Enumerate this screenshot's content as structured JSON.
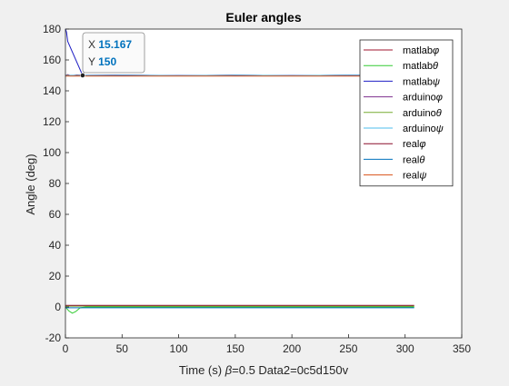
{
  "chart_data": {
    "type": "line",
    "title": "Euler angles",
    "xlabel_parts": [
      "Time (s) ",
      "β",
      "=0.5 Data2=0c5d150v"
    ],
    "ylabel": "Angle (deg)",
    "xlim": [
      0,
      350
    ],
    "ylim": [
      -20,
      180
    ],
    "xticks": [
      0,
      50,
      100,
      150,
      200,
      250,
      300,
      350
    ],
    "yticks": [
      -20,
      0,
      20,
      40,
      60,
      80,
      100,
      120,
      140,
      160,
      180
    ],
    "grid": false,
    "legend_placement": "top-right",
    "series": [
      {
        "name": "matlab φ",
        "label": "matlab",
        "sym": "φ",
        "color": "#a2142f",
        "points": [
          [
            0,
            150
          ],
          [
            2,
            150.5
          ],
          [
            5,
            149.7
          ],
          [
            10,
            150.3
          ],
          [
            20,
            149.8
          ],
          [
            50,
            150.2
          ],
          [
            100,
            149.9
          ],
          [
            150,
            150.2
          ],
          [
            200,
            149.8
          ],
          [
            250,
            150.1
          ],
          [
            300,
            150
          ],
          [
            308,
            150
          ]
        ]
      },
      {
        "name": "matlab θ",
        "label": "matlab",
        "sym": "θ",
        "color": "#33cc33",
        "points": [
          [
            0,
            0
          ],
          [
            3,
            -2.5
          ],
          [
            6,
            -4
          ],
          [
            9,
            -3
          ],
          [
            13,
            -0.5
          ],
          [
            18,
            0
          ],
          [
            50,
            0
          ],
          [
            100,
            0
          ],
          [
            150,
            0
          ],
          [
            200,
            0
          ],
          [
            250,
            0
          ],
          [
            308,
            0
          ]
        ]
      },
      {
        "name": "matlab ψ",
        "label": "matlab",
        "sym": "ψ",
        "color": "#1f1fc4",
        "points": [
          [
            0,
            180
          ],
          [
            1,
            178
          ],
          [
            2,
            172
          ],
          [
            15.167,
            150
          ],
          [
            30,
            150
          ],
          [
            100,
            150
          ],
          [
            200,
            150
          ],
          [
            308,
            150
          ]
        ]
      },
      {
        "name": "arduino φ",
        "label": "arduino",
        "sym": "φ",
        "color": "#7e2f8e",
        "points": [
          [
            0,
            150
          ],
          [
            50,
            150.3
          ],
          [
            100,
            149.8
          ],
          [
            150,
            150.2
          ],
          [
            200,
            149.9
          ],
          [
            250,
            150.2
          ],
          [
            308,
            150
          ]
        ]
      },
      {
        "name": "arduino θ",
        "label": "arduino",
        "sym": "θ",
        "color": "#77ac30",
        "points": [
          [
            0,
            0.5
          ],
          [
            308,
            0.5
          ]
        ]
      },
      {
        "name": "arduino ψ",
        "label": "arduino",
        "sym": "ψ",
        "color": "#4dbeee",
        "points": [
          [
            0,
            150
          ],
          [
            50,
            150.1
          ],
          [
            100,
            149.9
          ],
          [
            150,
            150.1
          ],
          [
            200,
            149.9
          ],
          [
            250,
            150.1
          ],
          [
            308,
            150
          ]
        ]
      },
      {
        "name": "real φ",
        "label": "real",
        "sym": "φ",
        "color": "#8b0f2b",
        "points": [
          [
            0,
            1
          ],
          [
            308,
            1
          ]
        ]
      },
      {
        "name": "real θ",
        "label": "real",
        "sym": "θ",
        "color": "#0072bd",
        "points": [
          [
            0,
            -0.5
          ],
          [
            308,
            -0.5
          ]
        ]
      },
      {
        "name": "real ψ",
        "label": "real",
        "sym": "ψ",
        "color": "#d95319",
        "points": [
          [
            0,
            149.5
          ],
          [
            308,
            149.5
          ]
        ]
      }
    ],
    "datatip": {
      "x_label": "X",
      "x_value": "15.167",
      "y_label": "Y",
      "y_value": "150",
      "x": 15.167,
      "y": 150
    }
  }
}
